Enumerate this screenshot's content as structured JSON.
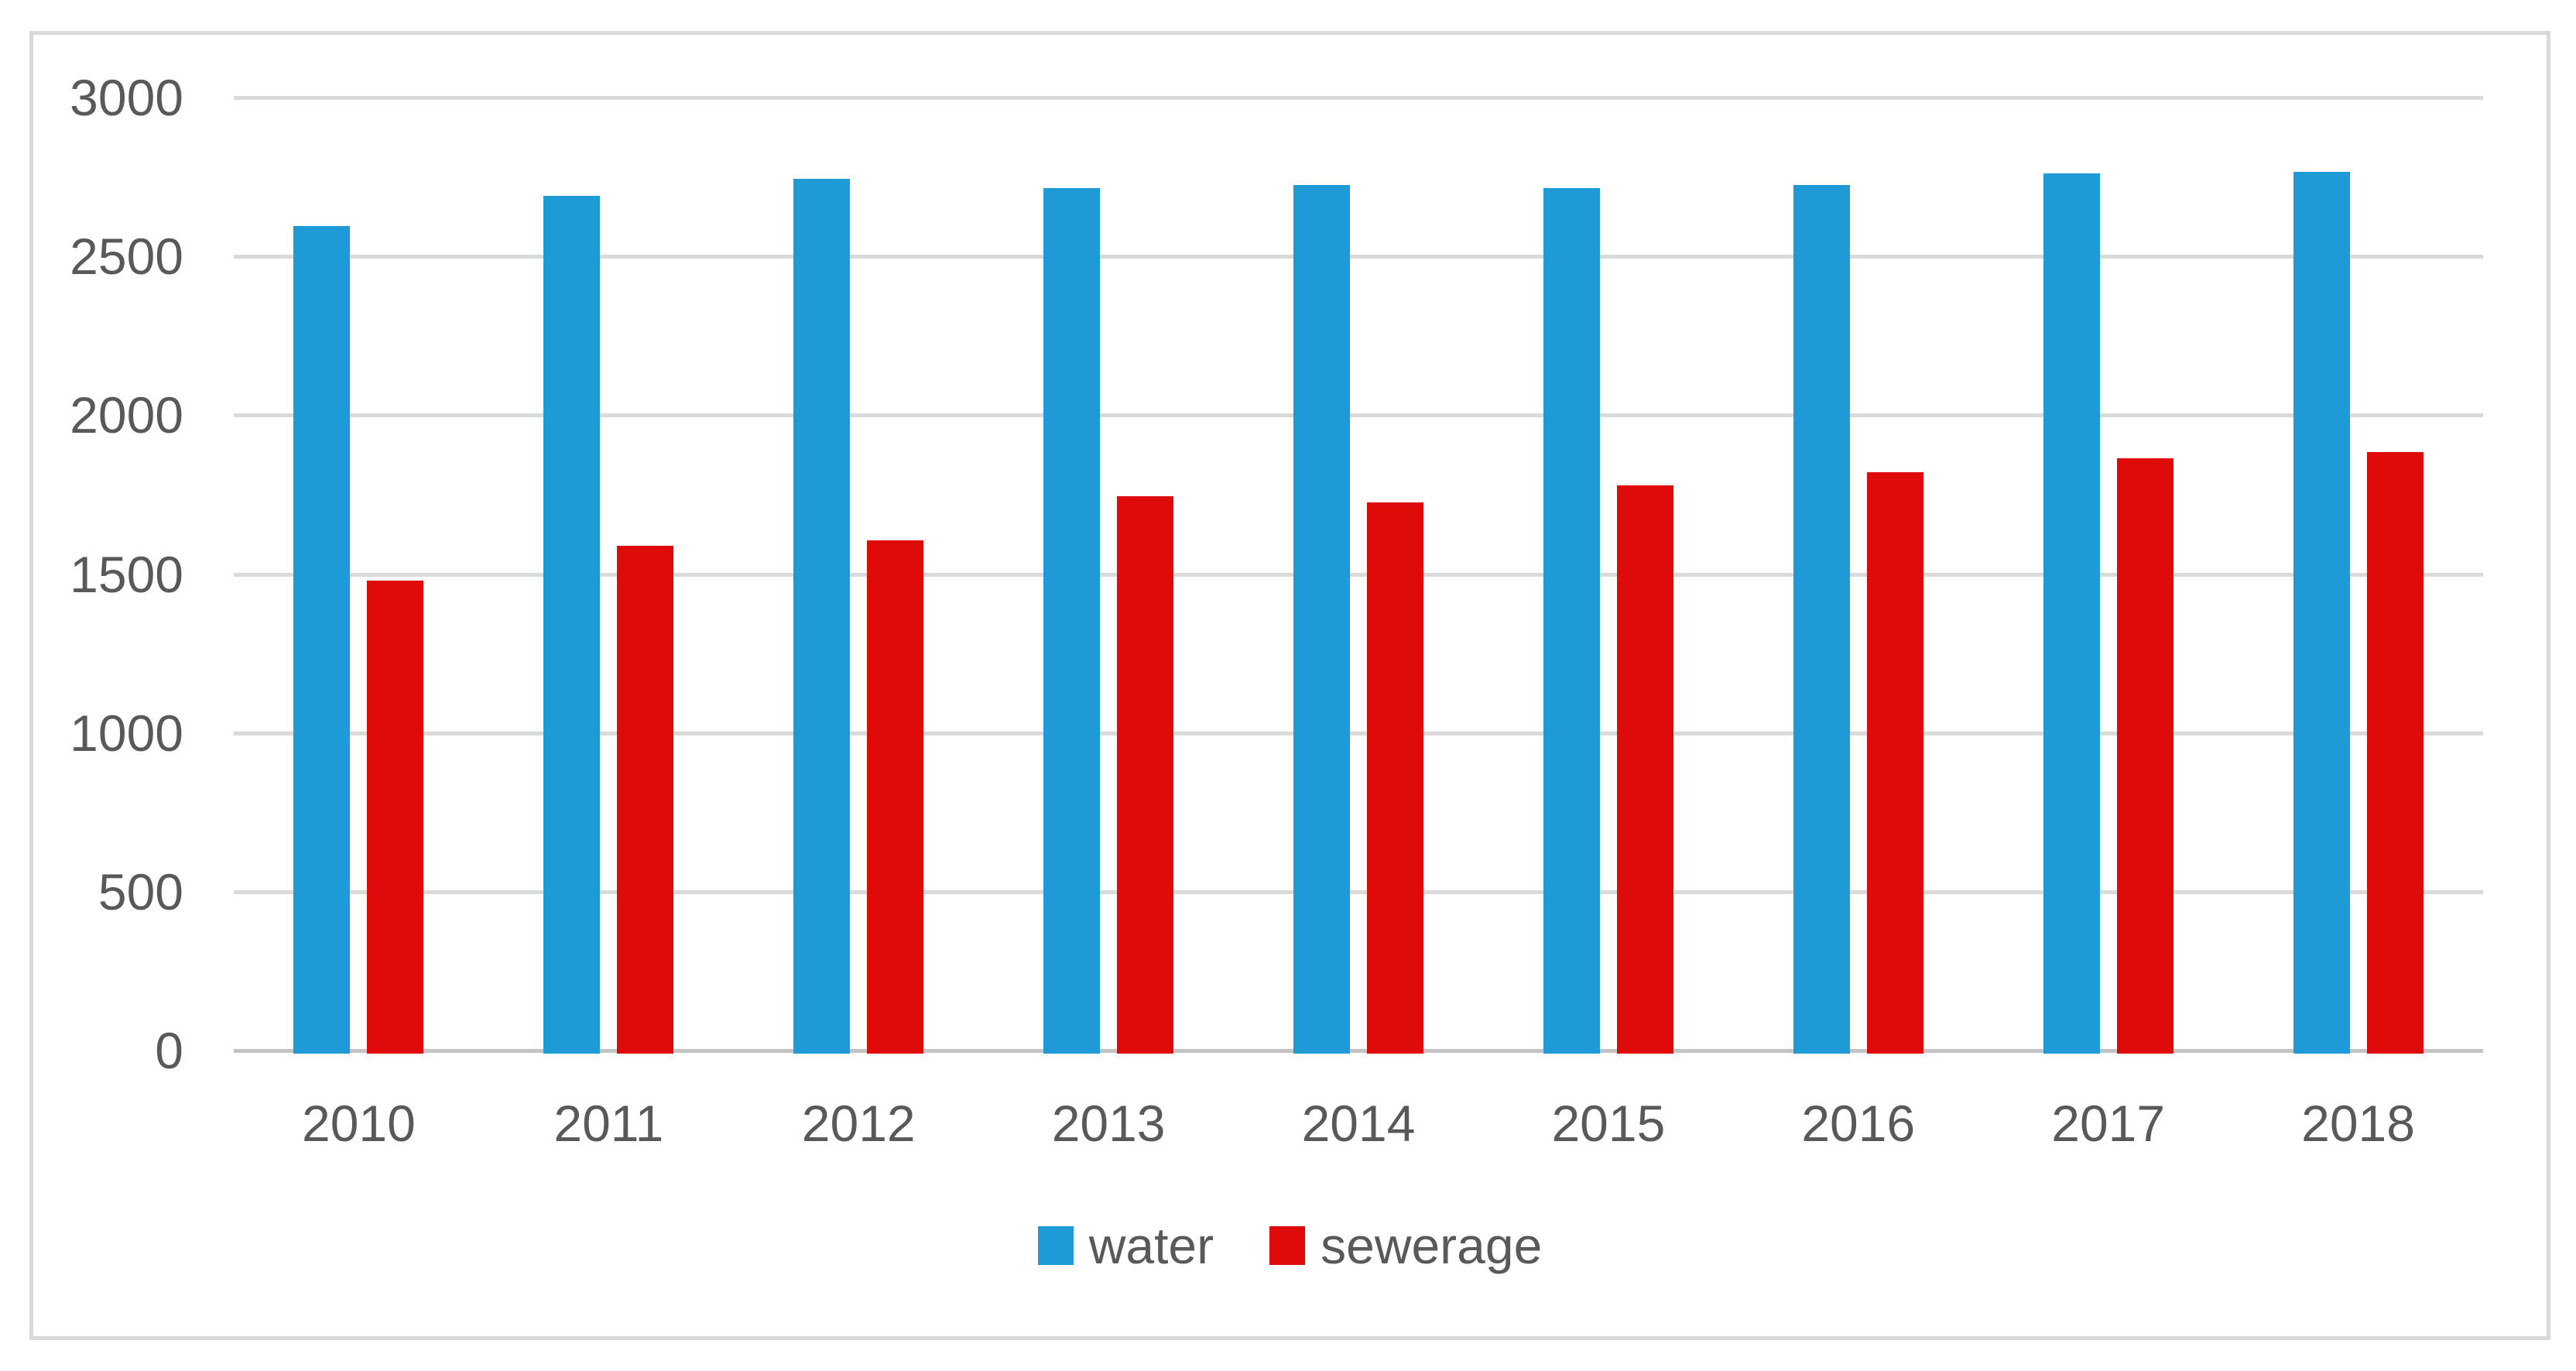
{
  "chart_data": {
    "type": "bar",
    "title": "",
    "xlabel": "",
    "ylabel": "",
    "categories": [
      "2010",
      "2011",
      "2012",
      "2013",
      "2014",
      "2015",
      "2016",
      "2017",
      "2018"
    ],
    "series": [
      {
        "name": "water",
        "color": "#1E9BD7",
        "values": [
          2595,
          2690,
          2745,
          2715,
          2725,
          2715,
          2725,
          2760,
          2765
        ]
      },
      {
        "name": "sewerage",
        "color": "#DF0B0B",
        "values": [
          1480,
          1590,
          1605,
          1745,
          1725,
          1780,
          1820,
          1865,
          1885
        ]
      }
    ],
    "ylim": [
      0,
      3000
    ],
    "yticks": [
      3000,
      2500,
      2000,
      1500,
      1000,
      500,
      0
    ],
    "grid": true,
    "legend_position": "bottom-center",
    "colors": {
      "gridline": "#DADADA",
      "axis_line": "#C3C3C3",
      "tick_text": "#595959",
      "panel_border": "#D9D9D9",
      "background": "#FFFFFF"
    }
  }
}
